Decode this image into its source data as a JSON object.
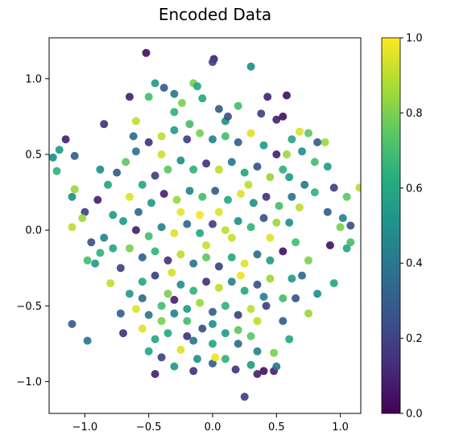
{
  "chart_data": {
    "type": "scatter",
    "title": "Encoded Data",
    "xlabel": "",
    "ylabel": "",
    "xlim": [
      -1.28,
      1.16
    ],
    "ylim": [
      -1.21,
      1.27
    ],
    "xticks": [
      -1.0,
      -0.5,
      0.0,
      0.5,
      1.0
    ],
    "xtick_labels": [
      "−1.0",
      "−0.5",
      "0.0",
      "0.5",
      "1.0"
    ],
    "yticks": [
      -1.0,
      -0.5,
      0.0,
      0.5,
      1.0
    ],
    "ytick_labels": [
      "−1.0",
      "−0.5",
      "0.0",
      "0.5",
      "1.0"
    ],
    "grid": false,
    "colormap": "viridis",
    "colorbar": {
      "range": [
        0.0,
        1.0
      ],
      "ticks": [
        0.0,
        0.2,
        0.4,
        0.6,
        0.8,
        1.0
      ],
      "tick_labels": [
        "0.0",
        "0.2",
        "0.4",
        "0.6",
        "0.8",
        "1.0"
      ]
    },
    "points": [
      [
        -0.52,
        1.17,
        0.05
      ],
      [
        0.01,
        1.13,
        0.1
      ],
      [
        0.0,
        1.11,
        0.2
      ],
      [
        0.3,
        1.08,
        0.5
      ],
      [
        -0.45,
        0.97,
        0.55
      ],
      [
        -0.38,
        0.94,
        0.3
      ],
      [
        -0.15,
        0.97,
        0.8
      ],
      [
        -0.12,
        0.95,
        0.6
      ],
      [
        -0.65,
        0.88,
        0.1
      ],
      [
        -0.5,
        0.88,
        0.7
      ],
      [
        0.43,
        0.88,
        0.1
      ],
      [
        0.58,
        0.89,
        0.05
      ],
      [
        -0.3,
        0.9,
        0.4
      ],
      [
        -0.24,
        0.84,
        0.8
      ],
      [
        -0.08,
        0.87,
        0.6
      ],
      [
        0.05,
        0.8,
        0.3
      ],
      [
        0.2,
        0.82,
        0.7
      ],
      [
        0.38,
        0.77,
        0.2
      ],
      [
        0.5,
        0.73,
        0.1
      ],
      [
        0.55,
        0.75,
        0.05
      ],
      [
        -0.85,
        0.7,
        0.15
      ],
      [
        -0.6,
        0.72,
        0.9
      ],
      [
        -0.18,
        0.7,
        0.7
      ],
      [
        0.1,
        0.72,
        0.5
      ],
      [
        0.68,
        0.65,
        0.95
      ],
      [
        0.75,
        0.64,
        0.75
      ],
      [
        -1.15,
        0.6,
        0.1
      ],
      [
        -1.2,
        0.53,
        0.55
      ],
      [
        -1.25,
        0.48,
        0.5
      ],
      [
        -1.22,
        0.39,
        0.65
      ],
      [
        -1.08,
        0.49,
        0.3
      ],
      [
        -1.08,
        0.27,
        0.85
      ],
      [
        -1.1,
        0.22,
        0.5
      ],
      [
        -1.0,
        0.12,
        0.2
      ],
      [
        -1.02,
        0.08,
        0.85
      ],
      [
        -1.1,
        0.02,
        0.9
      ],
      [
        -0.98,
        -0.2,
        0.7
      ],
      [
        -0.92,
        -0.22,
        0.55
      ],
      [
        -0.88,
        -0.15,
        0.65
      ],
      [
        -1.1,
        -0.62,
        0.3
      ],
      [
        -0.98,
        -0.73,
        0.4
      ],
      [
        -0.7,
        -0.68,
        0.15
      ],
      [
        -0.72,
        -0.55,
        0.3
      ],
      [
        -0.55,
        -0.65,
        0.95
      ],
      [
        -0.45,
        -0.72,
        0.6
      ],
      [
        -0.4,
        -0.84,
        0.2
      ],
      [
        -0.45,
        -0.95,
        0.1
      ],
      [
        -0.3,
        -0.9,
        0.55
      ],
      [
        -0.25,
        -0.79,
        0.95
      ],
      [
        -0.15,
        -0.73,
        0.4
      ],
      [
        -0.12,
        -0.85,
        0.5
      ],
      [
        -0.15,
        -0.93,
        0.15
      ],
      [
        0.0,
        -0.88,
        0.3
      ],
      [
        0.02,
        -0.84,
        0.98
      ],
      [
        0.1,
        -0.85,
        0.65
      ],
      [
        0.18,
        -0.92,
        0.15
      ],
      [
        0.3,
        -0.89,
        0.55
      ],
      [
        0.35,
        -0.95,
        0.1
      ],
      [
        0.4,
        -0.93,
        0.05
      ],
      [
        0.48,
        -0.93,
        0.1
      ],
      [
        0.5,
        -0.9,
        0.4
      ],
      [
        0.25,
        -1.1,
        0.2
      ],
      [
        0.48,
        -0.81,
        0.8
      ],
      [
        0.6,
        -0.72,
        0.6
      ],
      [
        0.55,
        -0.6,
        0.3
      ],
      [
        0.75,
        -0.55,
        0.85
      ],
      [
        0.82,
        -0.42,
        0.5
      ],
      [
        0.95,
        -0.35,
        0.6
      ],
      [
        1.05,
        -0.12,
        0.6
      ],
      [
        1.08,
        -0.08,
        0.7
      ],
      [
        1.0,
        0.02,
        0.8
      ],
      [
        1.08,
        0.03,
        0.25
      ],
      [
        1.02,
        0.08,
        0.45
      ],
      [
        1.05,
        0.22,
        0.75
      ],
      [
        1.15,
        0.28,
        0.9
      ],
      [
        0.95,
        0.28,
        0.2
      ],
      [
        0.9,
        0.42,
        0.55
      ],
      [
        0.88,
        0.58,
        0.85
      ],
      [
        0.82,
        0.58,
        0.3
      ],
      [
        0.8,
        0.45,
        0.7
      ],
      [
        0.7,
        0.52,
        0.5
      ],
      [
        0.62,
        0.6,
        0.6
      ],
      [
        0.72,
        0.3,
        0.4
      ],
      [
        0.68,
        0.15,
        0.9
      ],
      [
        0.6,
        0.05,
        0.5
      ],
      [
        0.9,
        0.12,
        0.3
      ],
      [
        0.92,
        -0.1,
        0.05
      ],
      [
        0.75,
        -0.2,
        0.8
      ],
      [
        0.62,
        -0.32,
        0.55
      ],
      [
        0.55,
        -0.45,
        0.7
      ],
      [
        0.42,
        -0.5,
        0.2
      ],
      [
        0.35,
        -0.6,
        0.9
      ],
      [
        0.3,
        -0.7,
        0.75
      ],
      [
        0.2,
        -0.75,
        0.35
      ],
      [
        0.1,
        -0.68,
        0.55
      ],
      [
        0.0,
        -0.75,
        0.6
      ],
      [
        -0.08,
        -0.65,
        0.25
      ],
      [
        -0.2,
        -0.6,
        0.7
      ],
      [
        -0.3,
        -0.55,
        0.45
      ],
      [
        -0.4,
        -0.6,
        0.8
      ],
      [
        -0.55,
        -0.45,
        0.35
      ],
      [
        -0.65,
        -0.42,
        0.55
      ],
      [
        -0.8,
        -0.35,
        0.9
      ],
      [
        -0.72,
        -0.25,
        0.2
      ],
      [
        -0.85,
        -0.05,
        0.45
      ],
      [
        -0.78,
        0.1,
        0.55
      ],
      [
        -0.9,
        0.2,
        0.1
      ],
      [
        -0.82,
        0.3,
        0.6
      ],
      [
        -0.75,
        0.38,
        0.3
      ],
      [
        -0.68,
        0.45,
        0.75
      ],
      [
        -0.6,
        0.52,
        0.4
      ],
      [
        -0.5,
        0.58,
        0.15
      ],
      [
        -0.4,
        0.62,
        0.9
      ],
      [
        -0.3,
        0.66,
        0.55
      ],
      [
        -0.2,
        0.6,
        0.2
      ],
      [
        -0.1,
        0.64,
        0.8
      ],
      [
        0.0,
        0.6,
        0.45
      ],
      [
        0.1,
        0.62,
        0.7
      ],
      [
        0.2,
        0.58,
        0.3
      ],
      [
        0.3,
        0.64,
        0.95
      ],
      [
        0.4,
        0.56,
        0.55
      ],
      [
        0.5,
        0.5,
        0.1
      ],
      [
        0.55,
        0.4,
        0.65
      ],
      [
        0.45,
        0.35,
        0.85
      ],
      [
        0.35,
        0.42,
        0.25
      ],
      [
        0.25,
        0.38,
        0.6
      ],
      [
        0.15,
        0.45,
        0.4
      ],
      [
        0.05,
        0.4,
        0.9
      ],
      [
        -0.05,
        0.44,
        0.15
      ],
      [
        -0.15,
        0.4,
        0.65
      ],
      [
        -0.25,
        0.46,
        0.5
      ],
      [
        -0.35,
        0.4,
        0.75
      ],
      [
        -0.45,
        0.36,
        0.2
      ],
      [
        -0.55,
        0.3,
        0.6
      ],
      [
        -0.65,
        0.22,
        0.95
      ],
      [
        -0.58,
        0.12,
        0.35
      ],
      [
        -0.48,
        0.18,
        0.55
      ],
      [
        -0.38,
        0.24,
        0.1
      ],
      [
        -0.28,
        0.2,
        0.85
      ],
      [
        -0.18,
        0.26,
        0.45
      ],
      [
        -0.08,
        0.22,
        0.7
      ],
      [
        0.02,
        0.26,
        0.3
      ],
      [
        0.12,
        0.2,
        0.6
      ],
      [
        0.22,
        0.24,
        0.95
      ],
      [
        0.32,
        0.18,
        0.5
      ],
      [
        0.42,
        0.22,
        0.15
      ],
      [
        0.52,
        0.16,
        0.7
      ],
      [
        0.62,
        0.22,
        0.4
      ],
      [
        0.5,
        0.05,
        0.85
      ],
      [
        0.4,
        0.08,
        0.25
      ],
      [
        0.3,
        0.02,
        0.65
      ],
      [
        0.2,
        0.06,
        0.5
      ],
      [
        0.1,
        0.0,
        0.9
      ],
      [
        0.0,
        0.04,
        0.2
      ],
      [
        -0.1,
        -0.02,
        0.6
      ],
      [
        -0.2,
        0.04,
        0.35
      ],
      [
        -0.3,
        -0.02,
        0.95
      ],
      [
        -0.4,
        0.02,
        0.45
      ],
      [
        -0.5,
        -0.04,
        0.7
      ],
      [
        -0.6,
        0.0,
        0.1
      ],
      [
        -0.7,
        0.06,
        0.55
      ],
      [
        -0.65,
        -0.12,
        0.8
      ],
      [
        -0.55,
        -0.18,
        0.3
      ],
      [
        -0.45,
        -0.14,
        0.65
      ],
      [
        -0.35,
        -0.2,
        0.15
      ],
      [
        -0.25,
        -0.16,
        0.9
      ],
      [
        -0.15,
        -0.22,
        0.4
      ],
      [
        -0.05,
        -0.18,
        0.75
      ],
      [
        0.05,
        -0.24,
        0.2
      ],
      [
        0.15,
        -0.18,
        0.6
      ],
      [
        0.25,
        -0.22,
        0.95
      ],
      [
        0.35,
        -0.16,
        0.35
      ],
      [
        0.45,
        -0.2,
        0.55
      ],
      [
        0.55,
        -0.14,
        0.05
      ],
      [
        0.65,
        -0.08,
        0.7
      ],
      [
        0.45,
        -0.32,
        0.85
      ],
      [
        0.35,
        -0.36,
        0.25
      ],
      [
        0.25,
        -0.4,
        0.6
      ],
      [
        0.15,
        -0.34,
        0.45
      ],
      [
        0.05,
        -0.38,
        0.9
      ],
      [
        -0.05,
        -0.34,
        0.15
      ],
      [
        -0.15,
        -0.4,
        0.65
      ],
      [
        -0.25,
        -0.36,
        0.5
      ],
      [
        -0.35,
        -0.42,
        0.8
      ],
      [
        -0.45,
        -0.3,
        0.2
      ],
      [
        -0.55,
        -0.34,
        0.6
      ],
      [
        -0.6,
        -0.52,
        0.95
      ],
      [
        -0.5,
        -0.56,
        0.4
      ],
      [
        -0.4,
        -0.5,
        0.7
      ],
      [
        -0.3,
        -0.46,
        0.1
      ],
      [
        -0.2,
        -0.52,
        0.55
      ],
      [
        -0.1,
        -0.48,
        0.85
      ],
      [
        0.0,
        -0.54,
        0.3
      ],
      [
        0.1,
        -0.5,
        0.65
      ],
      [
        0.2,
        -0.56,
        0.2
      ],
      [
        0.3,
        -0.52,
        0.9
      ],
      [
        0.4,
        -0.44,
        0.45
      ],
      [
        0.2,
        -0.66,
        0.75
      ],
      [
        0.0,
        -0.62,
        0.5
      ],
      [
        -0.2,
        -0.7,
        0.15
      ],
      [
        -0.35,
        -0.68,
        0.6
      ],
      [
        -0.1,
        0.1,
        0.98
      ],
      [
        0.05,
        0.12,
        0.95
      ],
      [
        0.15,
        -0.05,
        0.92
      ],
      [
        -0.25,
        0.12,
        0.97
      ],
      [
        0.28,
        0.3,
        0.9
      ],
      [
        -0.4,
        0.5,
        0.93
      ],
      [
        0.45,
        -0.05,
        0.96
      ],
      [
        -0.05,
        -0.1,
        0.92
      ],
      [
        0.22,
        -0.3,
        0.97
      ],
      [
        -0.32,
        -0.28,
        0.94
      ],
      [
        0.6,
        0.35,
        0.55
      ],
      [
        -0.78,
        -0.12,
        0.6
      ],
      [
        -0.88,
        0.4,
        0.5
      ],
      [
        0.7,
        -0.3,
        0.35
      ],
      [
        0.8,
        0.25,
        0.65
      ],
      [
        -0.95,
        -0.08,
        0.25
      ],
      [
        0.58,
        0.5,
        0.85
      ],
      [
        -0.62,
        0.62,
        0.35
      ],
      [
        0.12,
        0.75,
        0.25
      ],
      [
        -0.3,
        0.78,
        0.65
      ],
      [
        0.35,
        -0.8,
        0.45
      ],
      [
        -0.5,
        -0.8,
        0.6
      ],
      [
        0.65,
        -0.45,
        0.25
      ]
    ]
  }
}
